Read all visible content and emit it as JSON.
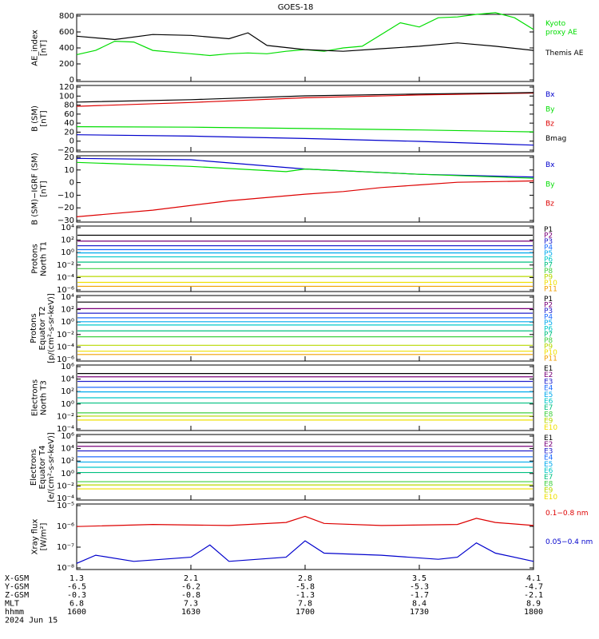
{
  "title": "GOES-18",
  "colors": {
    "black": "#000000",
    "green": "#00dd00",
    "blue": "#0000cc",
    "red": "#dd0000",
    "p": [
      "#000000",
      "#7a007a",
      "#2020cc",
      "#1e6cff",
      "#00aaee",
      "#00c8c8",
      "#00c080",
      "#40d040",
      "#b8d800",
      "#f0e000",
      "#f0a000",
      "#e05000",
      "#c00000"
    ]
  },
  "x_ticks": [
    "1600",
    "1630",
    "1700",
    "1730",
    "1800"
  ],
  "footer": {
    "rows": [
      {
        "label": "X-GSM",
        "vals": [
          "1.3",
          "2.1",
          "2.8",
          "3.5",
          "4.1"
        ]
      },
      {
        "label": "Y-GSM",
        "vals": [
          "-6.5",
          "-6.2",
          "-5.8",
          "-5.3",
          "-4.7"
        ]
      },
      {
        "label": "Z-GSM",
        "vals": [
          "-0.3",
          "-0.8",
          "-1.3",
          "-1.7",
          "-2.1"
        ]
      },
      {
        "label": "MLT",
        "vals": [
          "6.8",
          "7.3",
          "7.8",
          "8.4",
          "8.9"
        ]
      },
      {
        "label": "hhmm",
        "vals": [
          "1600",
          "1630",
          "1700",
          "1730",
          "1800"
        ]
      }
    ],
    "date": "2024 Jun 15"
  },
  "chart_data": [
    {
      "type": "line",
      "ylabel": "AE_index\n[nT]",
      "yticks": [
        "800",
        "600",
        "400",
        "200",
        "0"
      ],
      "ylim": [
        0,
        800
      ],
      "series": [
        {
          "name": "Kyoto\nproxy AE",
          "color": "#00dd00",
          "x": [
            0,
            5,
            10,
            15,
            20,
            25,
            30,
            35,
            40,
            45,
            50,
            55,
            60,
            65,
            70,
            75,
            80,
            85,
            90,
            95,
            100,
            105,
            110,
            115,
            120
          ],
          "values": [
            320,
            370,
            480,
            470,
            370,
            350,
            330,
            310,
            330,
            340,
            330,
            360,
            380,
            360,
            400,
            420,
            560,
            700,
            650,
            760,
            770,
            800,
            820,
            760,
            620
          ]
        },
        {
          "name": "Themis AE",
          "color": "#000000",
          "x": [
            0,
            10,
            20,
            30,
            40,
            45,
            50,
            60,
            70,
            80,
            90,
            100,
            110,
            120
          ],
          "values": [
            540,
            500,
            560,
            550,
            510,
            580,
            430,
            380,
            360,
            390,
            420,
            460,
            420,
            370
          ]
        }
      ]
    },
    {
      "type": "line",
      "ylabel": "B (SM)\n[nT]",
      "yticks": [
        "120",
        "100",
        "80",
        "60",
        "40",
        "20",
        "0",
        "−20"
      ],
      "ylim": [
        -20,
        120
      ],
      "series": [
        {
          "name": "Bx",
          "color": "#0000cc",
          "x": [
            0,
            30,
            60,
            90,
            120
          ],
          "values": [
            16,
            13,
            8,
            2,
            -6
          ]
        },
        {
          "name": "By",
          "color": "#00dd00",
          "x": [
            0,
            30,
            60,
            90,
            120
          ],
          "values": [
            33,
            32,
            29,
            26,
            22
          ]
        },
        {
          "name": "Bz",
          "color": "#dd0000",
          "x": [
            0,
            30,
            60,
            90,
            120
          ],
          "values": [
            76,
            84,
            94,
            100,
            104
          ]
        },
        {
          "name": "Bmag",
          "color": "#000000",
          "x": [
            0,
            30,
            60,
            90,
            120
          ],
          "values": [
            85,
            90,
            98,
            102,
            105
          ]
        }
      ]
    },
    {
      "type": "line",
      "ylabel": "B (SM)−IGRF (SM)\n[nT]",
      "yticks": [
        "20",
        "10",
        "0",
        "−10",
        "−20",
        "−30"
      ],
      "ylim": [
        -30,
        20
      ],
      "series": [
        {
          "name": "Bx",
          "color": "#0000cc",
          "x": [
            0,
            30,
            60,
            90,
            120
          ],
          "values": [
            18,
            17,
            10,
            6,
            4
          ]
        },
        {
          "name": "By",
          "color": "#00dd00",
          "x": [
            0,
            30,
            55,
            60,
            90,
            120
          ],
          "values": [
            15,
            12,
            8,
            10,
            6,
            3
          ]
        },
        {
          "name": "Bz",
          "color": "#dd0000",
          "x": [
            0,
            20,
            40,
            60,
            70,
            80,
            90,
            100,
            120
          ],
          "values": [
            -26,
            -21,
            -14,
            -9,
            -7,
            -4,
            -2,
            0,
            1
          ]
        }
      ]
    },
    {
      "type": "line",
      "log": true,
      "ylabel": "Protons\nNorth T1",
      "yticks": [
        "10⁴",
        "10²",
        "10⁰",
        "10⁻²",
        "10⁻⁴",
        "10⁻⁶"
      ],
      "ylim": [
        -6,
        4
      ],
      "legend": [
        "P1",
        "P2",
        "P3",
        "P4",
        "P5",
        "P6",
        "P7",
        "P8",
        "P9",
        "P10",
        "P11"
      ],
      "levels": [
        2.6,
        1.7,
        1.0,
        0.4,
        -0.1,
        -0.7,
        -1.5,
        -2.5,
        -3.7,
        -4.6,
        -5.2
      ]
    },
    {
      "type": "line",
      "log": true,
      "ylabel": "Protons\nEquator T2\n[p/(cm²-s-sr-keV)]",
      "yticks": [
        "10⁴",
        "10²",
        "10⁰",
        "10⁻²",
        "10⁻⁴",
        "10⁻⁶"
      ],
      "ylim": [
        -6,
        4
      ],
      "legend": [
        "P1",
        "P2",
        "P3",
        "P4",
        "P5",
        "P6",
        "P7",
        "P8",
        "P9",
        "P10",
        "P11"
      ],
      "levels": [
        3.0,
        2.0,
        1.3,
        0.6,
        0.0,
        -0.5,
        -1.4,
        -2.3,
        -3.6,
        -4.5,
        -5.0
      ]
    },
    {
      "type": "line",
      "log": true,
      "ylabel": "Electrons\nNorth T3",
      "yticks": [
        "10⁶",
        "10⁴",
        "10²",
        "10⁰",
        "10⁻²",
        "10⁻⁴"
      ],
      "ylim": [
        -4,
        6
      ],
      "legend": [
        "E1",
        "E2",
        "E3",
        "E4",
        "E5",
        "E6",
        "E7",
        "E8",
        "E9",
        "E10"
      ],
      "levels": [
        4.7,
        4.2,
        3.5,
        2.6,
        1.9,
        1.0,
        0.2,
        -1.3,
        -1.8,
        -2.4
      ]
    },
    {
      "type": "line",
      "log": true,
      "ylabel": "Electrons\nEquator T4\n[e/(cm²-s-sr-keV)]",
      "yticks": [
        "10⁶",
        "10⁴",
        "10²",
        "10⁰",
        "10⁻²",
        "10⁻⁴"
      ],
      "ylim": [
        -4,
        6
      ],
      "legend": [
        "E1",
        "E2",
        "E3",
        "E4",
        "E5",
        "E6",
        "E7",
        "E8",
        "E9",
        "E10"
      ],
      "levels": [
        4.8,
        4.2,
        3.5,
        2.6,
        1.8,
        1.0,
        0.2,
        -1.2,
        -1.7,
        -2.3
      ]
    },
    {
      "type": "line",
      "log": true,
      "ylabel": "Xray flux\n[W/m²]",
      "yticks": [
        "10⁻⁵",
        "10⁻⁶",
        "10⁻⁷",
        "10⁻⁸"
      ],
      "ylim": [
        -8.2,
        -5
      ],
      "series": [
        {
          "name": "0.1−0.8 nm",
          "color": "#dd0000",
          "x": [
            0,
            20,
            40,
            55,
            60,
            65,
            80,
            100,
            105,
            110,
            120
          ],
          "values": [
            -6.1,
            -6.0,
            -6.05,
            -5.9,
            -5.6,
            -5.95,
            -6.05,
            -6.0,
            -5.7,
            -5.9,
            -6.05
          ]
        },
        {
          "name": "0.05−0.4 nm",
          "color": "#0000cc",
          "x": [
            0,
            5,
            15,
            30,
            35,
            40,
            55,
            60,
            65,
            80,
            95,
            100,
            105,
            110,
            120
          ],
          "values": [
            -7.9,
            -7.5,
            -7.8,
            -7.6,
            -7.0,
            -7.8,
            -7.6,
            -6.8,
            -7.4,
            -7.5,
            -7.7,
            -7.6,
            -6.9,
            -7.4,
            -7.8
          ]
        }
      ]
    }
  ]
}
